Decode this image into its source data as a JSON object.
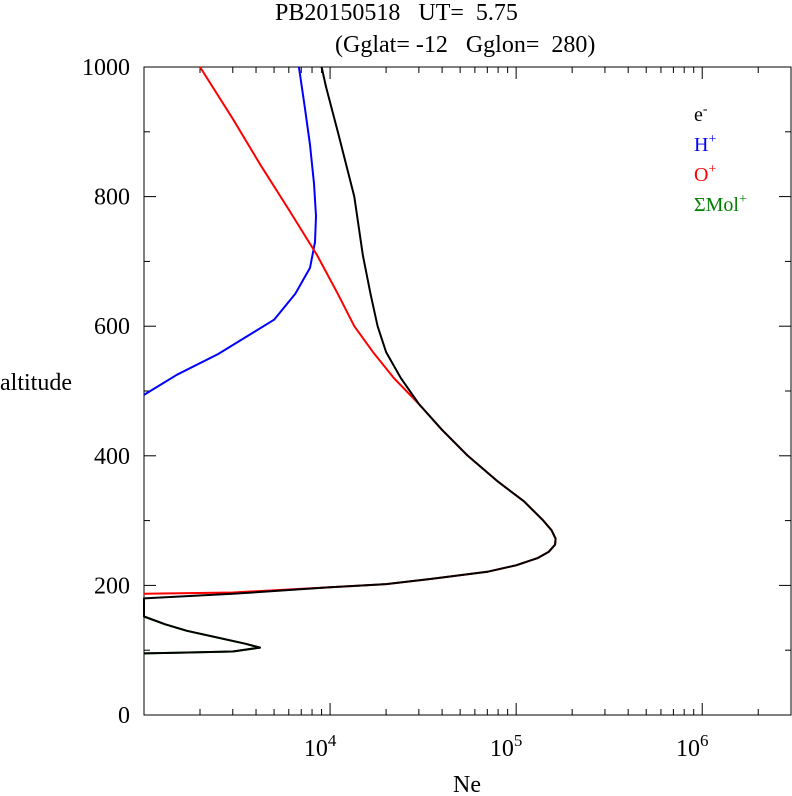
{
  "header": {
    "title": "PB20150518   UT=  5.75",
    "subtitle": "(Gglat= -12   Gglon=  280)"
  },
  "chart_data": {
    "type": "line",
    "title": "PB20150518   UT=  5.75",
    "subtitle": "(Gglat= -12   Gglon=  280)",
    "xlabel": "Ne",
    "ylabel": "altitude",
    "x_scale": "log",
    "xlim": [
      1000,
      3000000
    ],
    "ylim": [
      0,
      1000
    ],
    "y_ticks": [
      0,
      200,
      400,
      600,
      800,
      1000
    ],
    "y_tick_labels": [
      "0",
      "200",
      "400",
      "600",
      "800",
      "1000"
    ],
    "x_ticks": [
      10000,
      100000,
      1000000
    ],
    "x_tick_labels": [
      {
        "base": "10",
        "exp": "4"
      },
      {
        "base": "10",
        "exp": "5"
      },
      {
        "base": "10",
        "exp": "6"
      }
    ],
    "grid": false,
    "legend_position": "top-right",
    "series": [
      {
        "name": "e-",
        "legend": {
          "base": "e",
          "sup": "-"
        },
        "color": "#000000",
        "points": [
          [
            1000,
            95
          ],
          [
            1500,
            96
          ],
          [
            3000,
            98
          ],
          [
            4200,
            104
          ],
          [
            3500,
            110
          ],
          [
            1700,
            130
          ],
          [
            1300,
            140
          ],
          [
            1000,
            152
          ],
          [
            1000,
            180
          ],
          [
            3000,
            187
          ],
          [
            10000,
            197
          ],
          [
            20000,
            202
          ],
          [
            35000,
            210
          ],
          [
            70000,
            221
          ],
          [
            100000,
            231
          ],
          [
            130000,
            242
          ],
          [
            150000,
            252
          ],
          [
            162000,
            263
          ],
          [
            163000,
            272
          ],
          [
            155000,
            285
          ],
          [
            140000,
            300
          ],
          [
            110000,
            330
          ],
          [
            80000,
            360
          ],
          [
            55000,
            400
          ],
          [
            40000,
            440
          ],
          [
            30000,
            480
          ],
          [
            24000,
            520
          ],
          [
            20000,
            560
          ],
          [
            18000,
            600
          ],
          [
            16500,
            650
          ],
          [
            15000,
            710
          ],
          [
            13500,
            800
          ],
          [
            11000,
            900
          ],
          [
            9500,
            970
          ],
          [
            9000,
            1000
          ]
        ]
      },
      {
        "name": "H+",
        "legend": {
          "base": "H",
          "sup": "+"
        },
        "color": "#0000ff",
        "points": [
          [
            1000,
            494
          ],
          [
            1500,
            525
          ],
          [
            2500,
            557
          ],
          [
            5000,
            610
          ],
          [
            6500,
            650
          ],
          [
            7800,
            690
          ],
          [
            8300,
            730
          ],
          [
            8400,
            770
          ],
          [
            8200,
            820
          ],
          [
            7800,
            880
          ],
          [
            7300,
            940
          ],
          [
            6800,
            1000
          ]
        ]
      },
      {
        "name": "O+",
        "legend": {
          "base": "O",
          "sup": "+"
        },
        "color": "#ff0000",
        "points": [
          [
            1000,
            187
          ],
          [
            3000,
            189
          ],
          [
            10000,
            197
          ],
          [
            20000,
            202
          ],
          [
            35000,
            210
          ],
          [
            70000,
            221
          ],
          [
            100000,
            231
          ],
          [
            130000,
            242
          ],
          [
            150000,
            252
          ],
          [
            162000,
            263
          ],
          [
            163000,
            272
          ],
          [
            155000,
            285
          ],
          [
            140000,
            300
          ],
          [
            110000,
            330
          ],
          [
            80000,
            360
          ],
          [
            55000,
            400
          ],
          [
            40000,
            440
          ],
          [
            30000,
            480
          ],
          [
            22000,
            520
          ],
          [
            17000,
            560
          ],
          [
            13500,
            600
          ],
          [
            11000,
            650
          ],
          [
            8500,
            710
          ],
          [
            6000,
            780
          ],
          [
            4200,
            850
          ],
          [
            3000,
            920
          ],
          [
            2000,
            1000
          ]
        ]
      },
      {
        "name": "ΣMol+",
        "legend": {
          "base": "ΣMol",
          "sup": "+"
        },
        "color": "#008000",
        "points": [
          [
            1000,
            95
          ],
          [
            1500,
            96
          ],
          [
            3000,
            98
          ],
          [
            4200,
            104
          ],
          [
            3500,
            110
          ],
          [
            1700,
            130
          ],
          [
            1300,
            140
          ],
          [
            1000,
            152
          ]
        ]
      }
    ]
  }
}
